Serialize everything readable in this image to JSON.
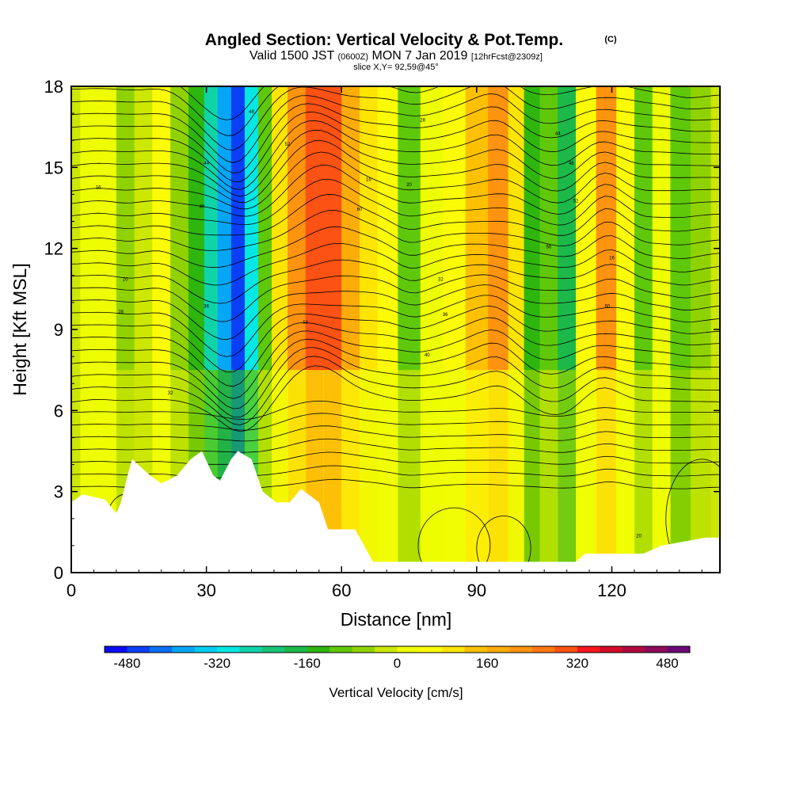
{
  "chart_data": {
    "type": "heatmap",
    "title": "Angled Section: Vertical Velocity & Pot.Temp.",
    "title_mark": "(C)",
    "subtitle": {
      "valid": "Valid 1500 JST",
      "utc": "(0600Z)",
      "date": "MON 7 Jan 2019",
      "fcst": "[12hrFcst@2309z]"
    },
    "slice_label": "slice X,Y= 92,59@45°",
    "xlabel": "Distance [nm]",
    "ylabel": "Height [Kft MSL]",
    "xlim": [
      0,
      144
    ],
    "ylim": [
      0,
      18
    ],
    "xticks": [
      0,
      30,
      60,
      90,
      120
    ],
    "yticks": [
      0,
      3,
      6,
      9,
      12,
      15,
      18
    ],
    "colorbar": {
      "label": "Vertical Velocity [cm/s]",
      "ticks": [
        -480,
        -320,
        -160,
        0,
        160,
        320,
        480
      ],
      "range": [
        -520,
        520
      ],
      "colors": [
        "#0b0bf4",
        "#0a3ff5",
        "#0b6ff6",
        "#06a6f6",
        "#01ccf0",
        "#04e7e2",
        "#0fd4a8",
        "#18c476",
        "#1cb84a",
        "#2eb50e",
        "#5fc80a",
        "#90d200",
        "#cce700",
        "#eefd01",
        "#fbfb05",
        "#fde501",
        "#fec102",
        "#feac0a",
        "#fe930f",
        "#fd7811",
        "#fc5214",
        "#f5171c",
        "#d30c29",
        "#b10a3e",
        "#8c0b5b",
        "#6c0778"
      ]
    },
    "velocity_columns": [
      {
        "x": 0,
        "cm_s": -40
      },
      {
        "x": 4,
        "cm_s": 0
      },
      {
        "x": 8,
        "cm_s": 20
      },
      {
        "x": 12,
        "cm_s": -60
      },
      {
        "x": 16,
        "cm_s": -20
      },
      {
        "x": 20,
        "cm_s": 40
      },
      {
        "x": 24,
        "cm_s": -60
      },
      {
        "x": 28,
        "cm_s": -160
      },
      {
        "x": 31,
        "cm_s": -260
      },
      {
        "x": 34,
        "cm_s": -400
      },
      {
        "x": 37,
        "cm_s": -480
      },
      {
        "x": 40,
        "cm_s": -300
      },
      {
        "x": 43,
        "cm_s": -100
      },
      {
        "x": 46,
        "cm_s": 100
      },
      {
        "x": 50,
        "cm_s": 220
      },
      {
        "x": 54,
        "cm_s": 280
      },
      {
        "x": 58,
        "cm_s": 300
      },
      {
        "x": 62,
        "cm_s": 160
      },
      {
        "x": 66,
        "cm_s": 100
      },
      {
        "x": 70,
        "cm_s": 60
      },
      {
        "x": 75,
        "cm_s": -100
      },
      {
        "x": 80,
        "cm_s": 0
      },
      {
        "x": 85,
        "cm_s": 60
      },
      {
        "x": 90,
        "cm_s": 120
      },
      {
        "x": 95,
        "cm_s": 200
      },
      {
        "x": 99,
        "cm_s": 100
      },
      {
        "x": 102,
        "cm_s": -140
      },
      {
        "x": 106,
        "cm_s": -100
      },
      {
        "x": 110,
        "cm_s": -180
      },
      {
        "x": 114,
        "cm_s": 40
      },
      {
        "x": 119,
        "cm_s": 220
      },
      {
        "x": 123,
        "cm_s": 60
      },
      {
        "x": 127,
        "cm_s": -100
      },
      {
        "x": 131,
        "cm_s": 0
      },
      {
        "x": 135,
        "cm_s": -120
      },
      {
        "x": 140,
        "cm_s": -60
      },
      {
        "x": 144,
        "cm_s": -40
      }
    ],
    "terrain": [
      {
        "x": 0,
        "kft": 2.6
      },
      {
        "x": 2.5,
        "kft": 2.9
      },
      {
        "x": 7.5,
        "kft": 2.7
      },
      {
        "x": 10,
        "kft": 2.2
      },
      {
        "x": 11,
        "kft": 2.6
      },
      {
        "x": 12.5,
        "kft": 3.6
      },
      {
        "x": 13.5,
        "kft": 4.2
      },
      {
        "x": 17.5,
        "kft": 3.6
      },
      {
        "x": 20,
        "kft": 3.3
      },
      {
        "x": 23.5,
        "kft": 3.6
      },
      {
        "x": 26.5,
        "kft": 4.2
      },
      {
        "x": 29,
        "kft": 4.5
      },
      {
        "x": 31.5,
        "kft": 3.6
      },
      {
        "x": 33,
        "kft": 3.4
      },
      {
        "x": 35.5,
        "kft": 4.2
      },
      {
        "x": 37,
        "kft": 4.5
      },
      {
        "x": 40,
        "kft": 4.2
      },
      {
        "x": 42.5,
        "kft": 3.0
      },
      {
        "x": 45.5,
        "kft": 2.6
      },
      {
        "x": 48.5,
        "kft": 2.6
      },
      {
        "x": 51,
        "kft": 3.1
      },
      {
        "x": 55,
        "kft": 2.6
      },
      {
        "x": 57,
        "kft": 1.6
      },
      {
        "x": 63,
        "kft": 1.6
      },
      {
        "x": 67,
        "kft": 0.4
      },
      {
        "x": 112,
        "kft": 0.4
      },
      {
        "x": 114,
        "kft": 0.7
      },
      {
        "x": 127,
        "kft": 0.7
      },
      {
        "x": 131,
        "kft": 1.0
      },
      {
        "x": 141,
        "kft": 1.3
      },
      {
        "x": 144,
        "kft": 1.3
      }
    ],
    "isentrope_labels": [
      "16",
      "20",
      "28",
      "32",
      "36",
      "40",
      "44",
      "48",
      "52",
      "56",
      "60"
    ]
  }
}
